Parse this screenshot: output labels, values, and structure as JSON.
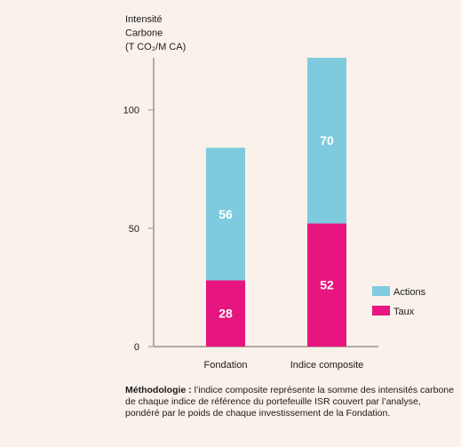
{
  "chart_data": {
    "type": "bar",
    "stacked": true,
    "ylabel_lines": [
      "Intensité",
      "Carbone",
      "(T CO₂/M CA)"
    ],
    "categories": [
      "Fondation",
      "Indice composite"
    ],
    "series": [
      {
        "name": "Taux",
        "values": [
          28,
          52
        ],
        "color": "#e6157f"
      },
      {
        "name": "Actions",
        "values": [
          56,
          70
        ],
        "color": "#7ecbdf"
      }
    ],
    "yticks": [
      0,
      50,
      100
    ],
    "ylim": [
      0,
      122
    ],
    "grid": false,
    "legend_position": "right"
  },
  "note": {
    "bold": "Méthodologie :",
    "text": " l’indice composite représente la somme des intensités carbone de chaque indice de référence du portefeuille ISR couvert par l’analyse, pondéré par le poids de chaque investissement de la Fondation."
  }
}
